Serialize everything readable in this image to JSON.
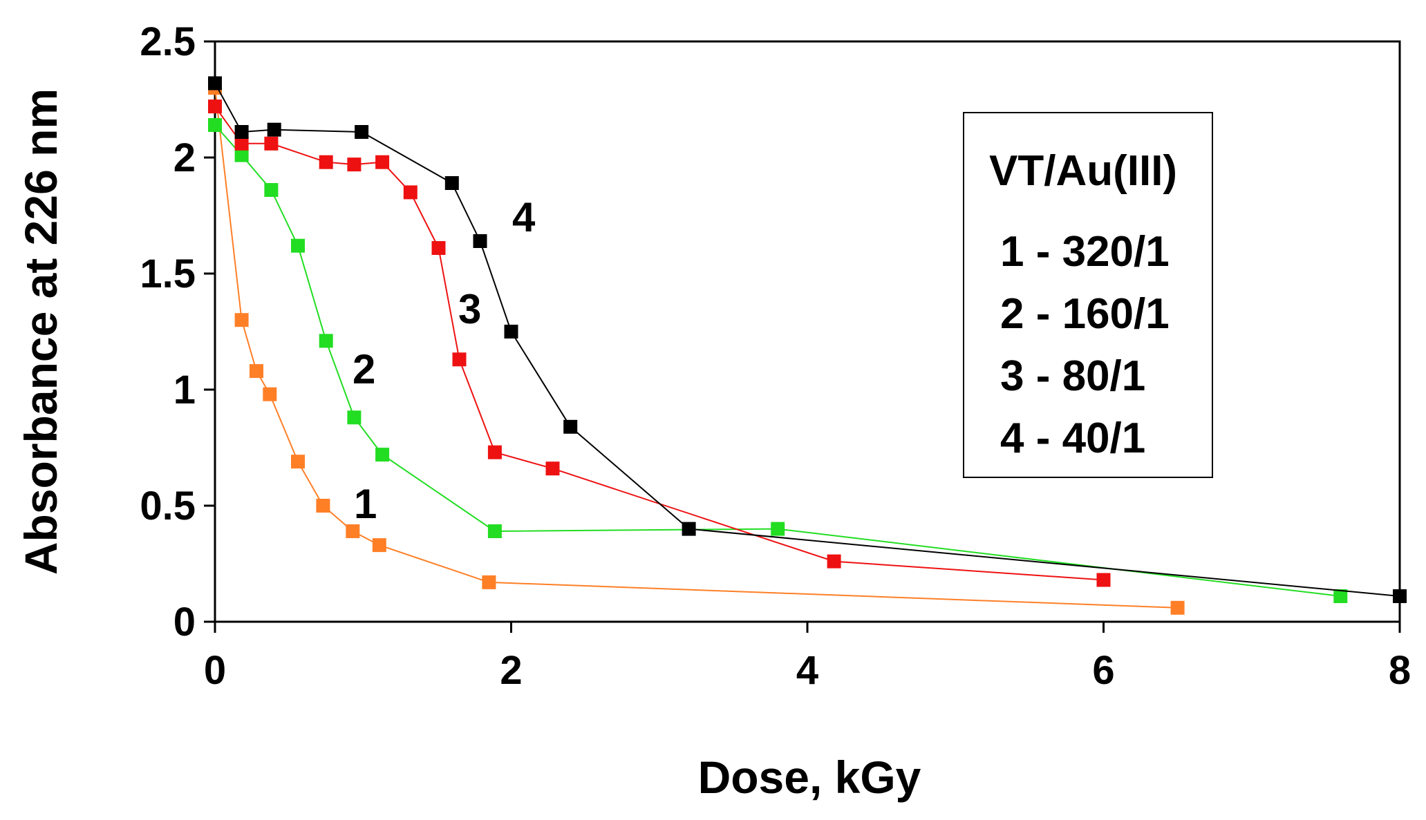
{
  "chart_data": {
    "type": "line",
    "xlabel": "Dose, kGy",
    "ylabel": "Absorbance at 226 nm",
    "xlim": [
      0,
      8
    ],
    "ylim": [
      0,
      2.5
    ],
    "x_ticks": [
      "0",
      "2",
      "4",
      "6",
      "8"
    ],
    "y_ticks": [
      "0",
      "0.5",
      "1",
      "1.5",
      "2",
      "2.5"
    ],
    "grid": false,
    "legend": {
      "placement": "top-right",
      "title": "VT/Au(III)",
      "entries": [
        "1 - 320/1",
        "2 - 160/1",
        "3 - 80/1",
        "4 - 40/1"
      ]
    },
    "series": [
      {
        "label": "1",
        "color": "#ff7f27",
        "x": [
          0,
          0.18,
          0.28,
          0.37,
          0.56,
          0.73,
          0.93,
          1.11,
          1.85,
          6.5
        ],
        "y": [
          2.3,
          1.3,
          1.08,
          0.98,
          0.69,
          0.5,
          0.39,
          0.33,
          0.17,
          0.06
        ]
      },
      {
        "label": "2",
        "color": "#22dd22",
        "x": [
          0,
          0.18,
          0.38,
          0.56,
          0.75,
          0.94,
          1.13,
          1.89,
          3.8,
          7.6
        ],
        "y": [
          2.14,
          2.01,
          1.86,
          1.62,
          1.21,
          0.88,
          0.72,
          0.39,
          0.4,
          0.11
        ]
      },
      {
        "label": "3",
        "color": "#ee1111",
        "x": [
          0,
          0.18,
          0.38,
          0.75,
          0.94,
          1.13,
          1.32,
          1.51,
          1.65,
          1.89,
          2.28,
          4.18,
          6.0
        ],
        "y": [
          2.22,
          2.06,
          2.06,
          1.98,
          1.97,
          1.98,
          1.85,
          1.61,
          1.13,
          0.73,
          0.66,
          0.26,
          0.18
        ]
      },
      {
        "label": "4",
        "color": "#000000",
        "x": [
          0,
          0.18,
          0.4,
          0.99,
          1.6,
          1.79,
          2.0,
          2.4,
          3.2,
          8.0
        ],
        "y": [
          2.32,
          2.11,
          2.12,
          2.11,
          1.89,
          1.64,
          1.25,
          0.84,
          0.4,
          0.11
        ]
      }
    ]
  }
}
